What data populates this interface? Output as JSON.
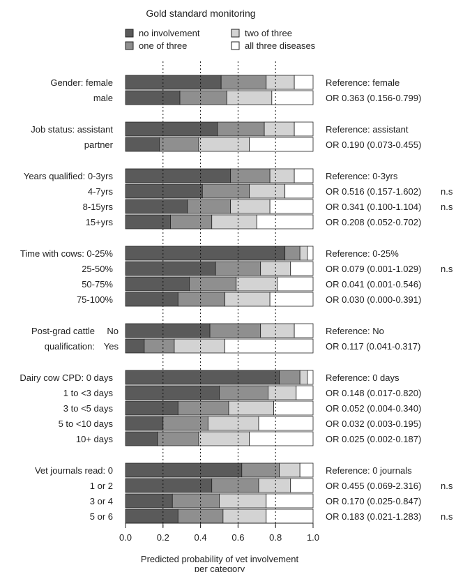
{
  "chart_data": {
    "type": "bar",
    "stacked": true,
    "orientation": "horizontal",
    "title": "Gold standard monitoring",
    "xlabel": "Predicted probability of vet involvement per category",
    "xlim": [
      0,
      1
    ],
    "xticks": [
      "0.0",
      "0.2",
      "0.4",
      "0.6",
      "0.8",
      "1.0"
    ],
    "gridlines": [
      0.2,
      0.4,
      0.6,
      0.8
    ],
    "legend": {
      "placement": "top",
      "entries": [
        {
          "name": "no involvement",
          "color": "#5a5a5a"
        },
        {
          "name": "one of three",
          "color": "#8f8f8f"
        },
        {
          "name": "two of three",
          "color": "#d3d3d3"
        },
        {
          "name": "all three diseases",
          "color": "#ffffff"
        }
      ]
    },
    "series_names": [
      "no involvement",
      "one of three",
      "two of three",
      "all three diseases"
    ],
    "groups": [
      {
        "name": "Gender",
        "rows": [
          {
            "label": "Gender: female",
            "values": [
              0.51,
              0.24,
              0.15,
              0.1
            ],
            "annotation": "Reference: female",
            "ns": ""
          },
          {
            "label": "male",
            "values": [
              0.29,
              0.25,
              0.24,
              0.22
            ],
            "annotation": "OR 0.363 (0.156-0.799)",
            "ns": ""
          }
        ]
      },
      {
        "name": "Job status",
        "rows": [
          {
            "label": "Job status: assistant",
            "values": [
              0.49,
              0.25,
              0.16,
              0.1
            ],
            "annotation": "Reference: assistant",
            "ns": ""
          },
          {
            "label": "partner",
            "values": [
              0.18,
              0.21,
              0.27,
              0.34
            ],
            "annotation": "OR 0.190 (0.073-0.455)",
            "ns": ""
          }
        ]
      },
      {
        "name": "Years qualified",
        "rows": [
          {
            "label": "Years qualified: 0-3yrs",
            "values": [
              0.56,
              0.21,
              0.13,
              0.1
            ],
            "annotation": "Reference: 0-3yrs",
            "ns": ""
          },
          {
            "label": "4-7yrs",
            "values": [
              0.41,
              0.25,
              0.19,
              0.15
            ],
            "annotation": "OR 0.516 (0.157-1.602)",
            "ns": "n.s"
          },
          {
            "label": "8-15yrs",
            "values": [
              0.33,
              0.23,
              0.21,
              0.23
            ],
            "annotation": "OR 0.341 (0.100-1.104)",
            "ns": "n.s"
          },
          {
            "label": "15+yrs",
            "values": [
              0.24,
              0.22,
              0.24,
              0.3
            ],
            "annotation": "OR 0.208 (0.052-0.702)",
            "ns": ""
          }
        ]
      },
      {
        "name": "Time with cows",
        "rows": [
          {
            "label": "Time with cows: 0-25%",
            "values": [
              0.85,
              0.08,
              0.04,
              0.03
            ],
            "annotation": "Reference: 0-25%",
            "ns": ""
          },
          {
            "label": "25-50%",
            "values": [
              0.48,
              0.24,
              0.16,
              0.12
            ],
            "annotation": "OR 0.079 (0.001-1.029)",
            "ns": "n.s"
          },
          {
            "label": "50-75%",
            "values": [
              0.34,
              0.25,
              0.22,
              0.19
            ],
            "annotation": "OR 0.041 (0.001-0.546)",
            "ns": ""
          },
          {
            "label": "75-100%",
            "values": [
              0.28,
              0.25,
              0.24,
              0.23
            ],
            "annotation": "OR 0.030 (0.000-0.391)",
            "ns": ""
          }
        ]
      },
      {
        "name": "Post-grad cattle qualification",
        "group_label_lines": [
          "Post-grad cattle",
          "qualification:"
        ],
        "rows": [
          {
            "label": "No",
            "values": [
              0.45,
              0.27,
              0.18,
              0.1
            ],
            "annotation": "Reference: No",
            "ns": ""
          },
          {
            "label": "Yes",
            "values": [
              0.1,
              0.16,
              0.27,
              0.47
            ],
            "annotation": "OR 0.117 (0.041-0.317)",
            "ns": ""
          }
        ]
      },
      {
        "name": "Dairy cow CPD",
        "rows": [
          {
            "label": "Dairy cow CPD: 0 days",
            "values": [
              0.82,
              0.11,
              0.04,
              0.03
            ],
            "annotation": "Reference: 0 days",
            "ns": ""
          },
          {
            "label": "1 to <3 days",
            "values": [
              0.5,
              0.26,
              0.15,
              0.09
            ],
            "annotation": "OR 0.148 (0.017-0.820)",
            "ns": ""
          },
          {
            "label": "3 to <5 days",
            "values": [
              0.28,
              0.27,
              0.24,
              0.21
            ],
            "annotation": "OR 0.052 (0.004-0.340)",
            "ns": ""
          },
          {
            "label": "5 to <10 days",
            "values": [
              0.2,
              0.24,
              0.27,
              0.29
            ],
            "annotation": "OR 0.032 (0.003-0.195)",
            "ns": ""
          },
          {
            "label": "10+ days",
            "values": [
              0.17,
              0.22,
              0.27,
              0.34
            ],
            "annotation": "OR 0.025 (0.002-0.187)",
            "ns": ""
          }
        ]
      },
      {
        "name": "Vet journals read",
        "rows": [
          {
            "label": "Vet journals read: 0",
            "values": [
              0.62,
              0.2,
              0.11,
              0.07
            ],
            "annotation": "Reference: 0 journals",
            "ns": ""
          },
          {
            "label": "1 or 2",
            "values": [
              0.46,
              0.25,
              0.17,
              0.12
            ],
            "annotation": "OR 0.455 (0.069-2.316)",
            "ns": "n.s"
          },
          {
            "label": "3 or 4",
            "values": [
              0.25,
              0.25,
              0.25,
              0.25
            ],
            "annotation": "OR 0.170 (0.025-0.847)",
            "ns": ""
          },
          {
            "label": "5 or 6",
            "values": [
              0.28,
              0.24,
              0.23,
              0.25
            ],
            "annotation": "OR 0.183 (0.021-1.283)",
            "ns": "n.s"
          }
        ]
      }
    ]
  }
}
